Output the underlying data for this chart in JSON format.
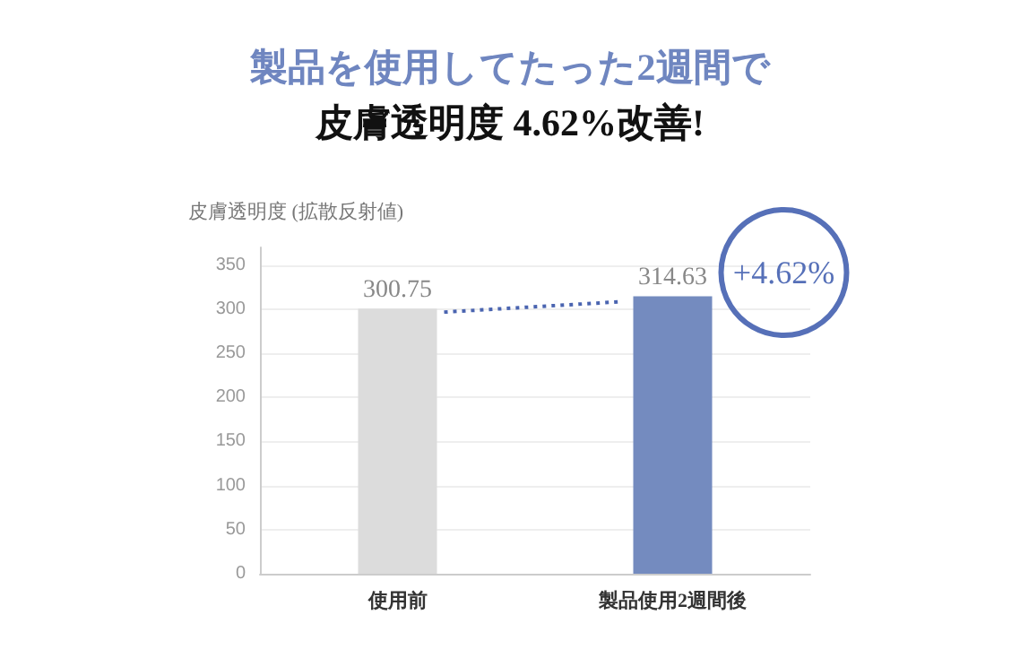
{
  "chart_data": {
    "type": "bar",
    "title": "製品を使用してたった2週間で",
    "subtitle": "皮膚透明度 4.62%改善!",
    "ylabel": "皮膚透明度 (拡散反射値)",
    "categories": [
      "使用前",
      "製品使用2週間後"
    ],
    "values": [
      300.75,
      314.63
    ],
    "colors": [
      "#dcdcdc",
      "#748bbf"
    ],
    "ylim": [
      0,
      370
    ],
    "yticks": [
      0,
      50,
      100,
      150,
      200,
      250,
      300,
      350
    ],
    "grid": "y",
    "data_labels": true,
    "annotations": [
      "+4.62%"
    ]
  }
}
